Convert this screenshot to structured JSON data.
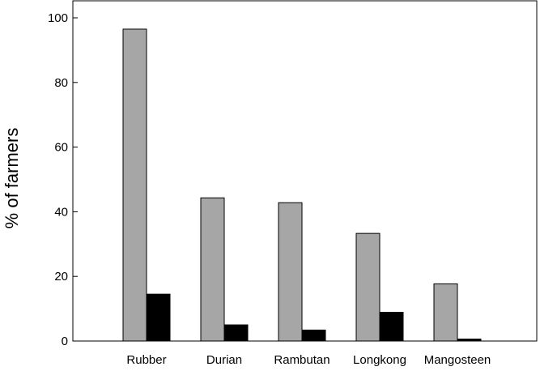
{
  "chart_data": {
    "type": "bar",
    "categories": [
      "Rubber",
      "Durian",
      "Rambutan",
      "Longkong",
      "Mangosteen"
    ],
    "series": [
      {
        "values": [
          96.5,
          44.3,
          42.8,
          33.3,
          17.7
        ],
        "color": "#a6a6a6"
      },
      {
        "values": [
          14.5,
          5.0,
          3.4,
          8.9,
          0.6
        ],
        "color": "#000000"
      }
    ],
    "title": "",
    "xlabel": "",
    "ylabel": "% of farmers",
    "ylim": [
      0,
      100
    ],
    "yticks": [
      0,
      20,
      40,
      60,
      80,
      100
    ],
    "grid": false,
    "legend": false
  }
}
